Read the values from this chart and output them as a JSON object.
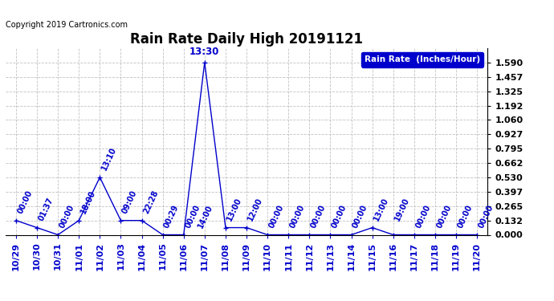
{
  "title": "Rain Rate Daily High 20191121",
  "ylabel": "Rain Rate  (Inches/Hour)",
  "copyright": "Copyright 2019 Cartronics.com",
  "line_color": "#0000cc",
  "background_color": "#ffffff",
  "grid_color": "#bbbbbb",
  "legend_bg": "#0000cc",
  "legend_text_color": "#ffffff",
  "ylim": [
    0.0,
    1.722
  ],
  "yticks": [
    0.0,
    0.132,
    0.265,
    0.397,
    0.53,
    0.662,
    0.795,
    0.927,
    1.06,
    1.192,
    1.325,
    1.457,
    1.59
  ],
  "x_dates": [
    "10/29",
    "10/30",
    "10/31",
    "11/01",
    "11/02",
    "11/03",
    "11/04",
    "11/05",
    "11/06",
    "11/07",
    "11/08",
    "11/09",
    "11/10",
    "11/11",
    "11/12",
    "11/13",
    "11/14",
    "11/15",
    "11/16",
    "11/17",
    "11/18",
    "11/19",
    "11/20"
  ],
  "data_points": [
    [
      0,
      0.132
    ],
    [
      1,
      0.066
    ],
    [
      2,
      0.0
    ],
    [
      3,
      0.132
    ],
    [
      4,
      0.53
    ],
    [
      5,
      0.132
    ],
    [
      6,
      0.132
    ],
    [
      7,
      0.0
    ],
    [
      8,
      0.0
    ],
    [
      9,
      1.59
    ],
    [
      10,
      0.066
    ],
    [
      11,
      0.066
    ],
    [
      12,
      0.0
    ],
    [
      13,
      0.0
    ],
    [
      14,
      0.0
    ],
    [
      15,
      0.0
    ],
    [
      16,
      0.0
    ],
    [
      17,
      0.066
    ],
    [
      18,
      0.0
    ],
    [
      19,
      0.0
    ],
    [
      20,
      0.0
    ],
    [
      21,
      0.0
    ],
    [
      22,
      0.0
    ]
  ],
  "point_annotations": [
    {
      "xi": 0,
      "yi": 0.132,
      "label": "00:00"
    },
    {
      "xi": 1,
      "yi": 0.066,
      "label": "01:37"
    },
    {
      "xi": 2,
      "yi": 0.0,
      "label": "00:00"
    },
    {
      "xi": 3,
      "yi": 0.132,
      "label": "18:00"
    },
    {
      "xi": 4,
      "yi": 0.53,
      "label": "13:10"
    },
    {
      "xi": 5,
      "yi": 0.132,
      "label": "09:00"
    },
    {
      "xi": 6,
      "yi": 0.132,
      "label": "22:28"
    },
    {
      "xi": 7,
      "yi": 0.0,
      "label": "00:29"
    },
    {
      "xi": 8,
      "yi": 0.0,
      "label": "00:00"
    },
    {
      "xi": 8.6,
      "yi": 0.0,
      "label": "14:00"
    },
    {
      "xi": 10,
      "yi": 0.066,
      "label": "13:00"
    },
    {
      "xi": 11,
      "yi": 0.066,
      "label": "12:00"
    },
    {
      "xi": 12,
      "yi": 0.0,
      "label": "00:00"
    },
    {
      "xi": 13,
      "yi": 0.0,
      "label": "00:00"
    },
    {
      "xi": 14,
      "yi": 0.0,
      "label": "00:00"
    },
    {
      "xi": 15,
      "yi": 0.0,
      "label": "00:00"
    },
    {
      "xi": 16,
      "yi": 0.0,
      "label": "00:00"
    },
    {
      "xi": 17,
      "yi": 0.066,
      "label": "13:00"
    },
    {
      "xi": 18,
      "yi": 0.066,
      "label": "19:00"
    },
    {
      "xi": 19,
      "yi": 0.0,
      "label": "00:00"
    },
    {
      "xi": 20,
      "yi": 0.0,
      "label": "00:00"
    },
    {
      "xi": 21,
      "yi": 0.0,
      "label": "00:00"
    },
    {
      "xi": 22,
      "yi": 0.0,
      "label": "00:00"
    }
  ],
  "peak_annotation": {
    "xi": 9,
    "yi": 1.59,
    "label": "13:30"
  },
  "title_fontsize": 12,
  "tick_fontsize": 8,
  "annot_fontsize": 7,
  "xlabel_fontsize": 8
}
